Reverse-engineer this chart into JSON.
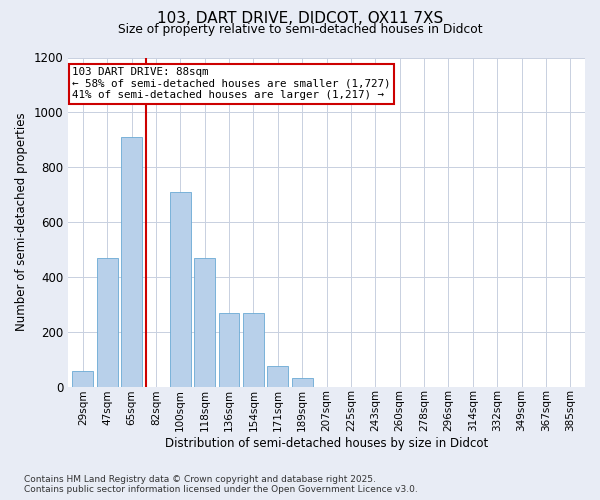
{
  "title_line1": "103, DART DRIVE, DIDCOT, OX11 7XS",
  "title_line2": "Size of property relative to semi-detached houses in Didcot",
  "xlabel": "Distribution of semi-detached houses by size in Didcot",
  "ylabel": "Number of semi-detached properties",
  "categories": [
    "29sqm",
    "47sqm",
    "65sqm",
    "82sqm",
    "100sqm",
    "118sqm",
    "136sqm",
    "154sqm",
    "171sqm",
    "189sqm",
    "207sqm",
    "225sqm",
    "243sqm",
    "260sqm",
    "278sqm",
    "296sqm",
    "314sqm",
    "332sqm",
    "349sqm",
    "367sqm",
    "385sqm"
  ],
  "values": [
    55,
    470,
    910,
    0,
    710,
    470,
    270,
    270,
    75,
    30,
    0,
    0,
    0,
    0,
    0,
    0,
    0,
    0,
    0,
    0,
    0
  ],
  "bar_color": "#b8d0ea",
  "bar_edge_color": "#6aaad4",
  "vline_color": "#cc0000",
  "vline_pos": 2.58,
  "annotation_text": "103 DART DRIVE: 88sqm\n← 58% of semi-detached houses are smaller (1,727)\n41% of semi-detached houses are larger (1,217) →",
  "annotation_box_color": "white",
  "annotation_box_edge": "#cc0000",
  "ylim_max": 1200,
  "yticks": [
    0,
    200,
    400,
    600,
    800,
    1000,
    1200
  ],
  "footer_line1": "Contains HM Land Registry data © Crown copyright and database right 2025.",
  "footer_line2": "Contains public sector information licensed under the Open Government Licence v3.0.",
  "background_color": "#e8ecf5",
  "plot_bg_color": "white",
  "grid_color": "#c8d0e0"
}
